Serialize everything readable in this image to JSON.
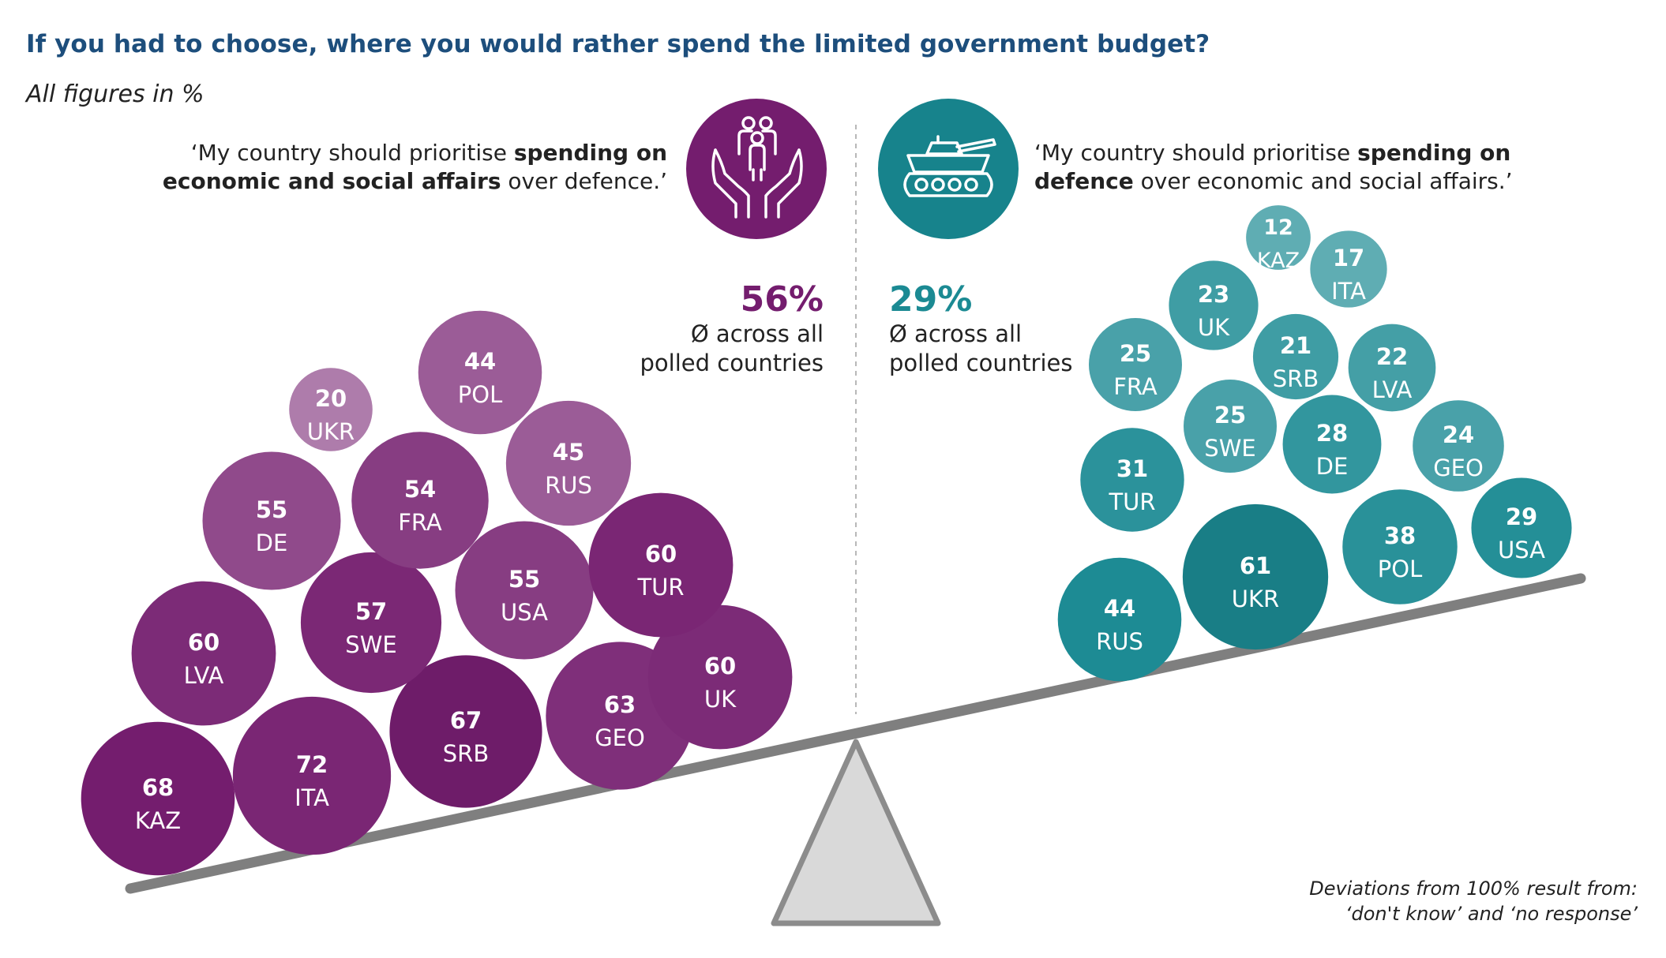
{
  "title": "If you had to choose, where you would rather spend the limited government budget?",
  "subtitle": "All figures in %",
  "left_statement": {
    "prefix": "‘My country should prioritise ",
    "bold": "spending on economic and social affairs",
    "suffix": " over defence.’",
    "icon": "hands-protecting-family-icon",
    "color": "#741d6e"
  },
  "right_statement": {
    "prefix": "‘My country should prioritise ",
    "bold": "spending on defence",
    "suffix": " over economic and social affairs.’",
    "icon": "tank-icon",
    "color": "#1b8a93"
  },
  "left_average": {
    "value": "56%",
    "label_line1": "Ø across all",
    "label_line2": "polled countries"
  },
  "right_average": {
    "value": "29%",
    "label_line1": "Ø across all",
    "label_line2": "polled countries"
  },
  "footnote": {
    "line1": "Deviations from 100% result from:",
    "line2": "‘don't know’ and ‘no response’"
  },
  "chart_data": {
    "type": "bubble",
    "unit": "%",
    "series": [
      {
        "name": "economic and social affairs",
        "color": "#741d6e",
        "points": [
          {
            "country": "KAZ",
            "value": 68
          },
          {
            "country": "ITA",
            "value": 72
          },
          {
            "country": "SRB",
            "value": 67
          },
          {
            "country": "GEO",
            "value": 63
          },
          {
            "country": "UK",
            "value": 60
          },
          {
            "country": "LVA",
            "value": 60
          },
          {
            "country": "SWE",
            "value": 57
          },
          {
            "country": "USA",
            "value": 55
          },
          {
            "country": "TUR",
            "value": 60
          },
          {
            "country": "DE",
            "value": 55
          },
          {
            "country": "FRA",
            "value": 54
          },
          {
            "country": "RUS",
            "value": 45
          },
          {
            "country": "POL",
            "value": 44
          },
          {
            "country": "UKR",
            "value": 20
          }
        ]
      },
      {
        "name": "defence",
        "color": "#1b8a93",
        "points": [
          {
            "country": "RUS",
            "value": 44
          },
          {
            "country": "UKR",
            "value": 61
          },
          {
            "country": "POL",
            "value": 38
          },
          {
            "country": "USA",
            "value": 29
          },
          {
            "country": "TUR",
            "value": 31
          },
          {
            "country": "SWE",
            "value": 25
          },
          {
            "country": "DE",
            "value": 28
          },
          {
            "country": "GEO",
            "value": 24
          },
          {
            "country": "FRA",
            "value": 25
          },
          {
            "country": "SRB",
            "value": 21
          },
          {
            "country": "LVA",
            "value": 22
          },
          {
            "country": "UK",
            "value": 23
          },
          {
            "country": "ITA",
            "value": 17
          },
          {
            "country": "KAZ",
            "value": 12
          }
        ]
      }
    ]
  }
}
